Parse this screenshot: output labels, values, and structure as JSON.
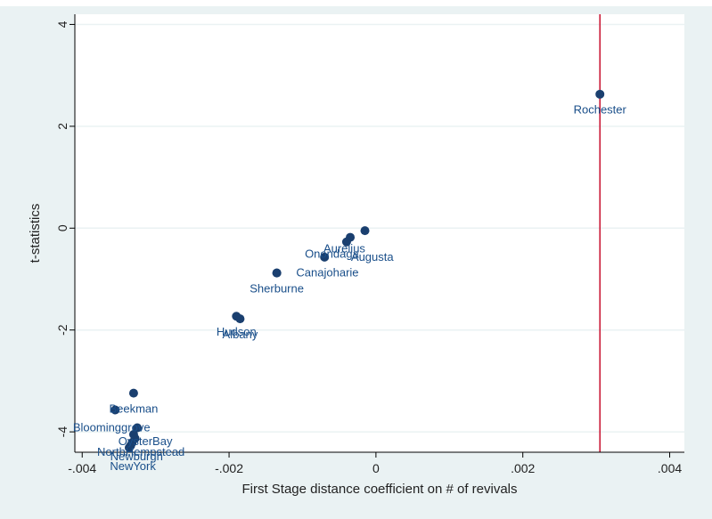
{
  "chart_data": {
    "type": "scatter",
    "title": "",
    "xlabel": "First Stage distance coefficient on # of revivals",
    "ylabel": "t-statistics",
    "xlim": [
      -0.0041,
      0.0042
    ],
    "ylim": [
      -4.4,
      4.2
    ],
    "x_ticks": [
      -0.004,
      -0.002,
      0,
      0.002,
      0.004
    ],
    "x_tick_labels": [
      "-.004",
      "-.002",
      "0",
      ".002",
      ".004"
    ],
    "y_ticks": [
      -4,
      -2,
      0,
      2,
      4
    ],
    "y_tick_labels": [
      "-4",
      "-2",
      "0",
      "2",
      "4"
    ],
    "grid": "horizontal",
    "reference_line": {
      "x": 0.00305,
      "color": "#c8102e"
    },
    "colors": {
      "marker": "#1a3f6f",
      "label": "#1a4f8a",
      "plot_bg": "#ffffff",
      "outer_bg": "#eaf2f3",
      "grid": "#eaf2f3",
      "axis": "#000000"
    },
    "points": [
      {
        "label": "Rochester",
        "x": 0.00305,
        "y": 2.63,
        "label_dx": 0.0,
        "label_dy": -0.3
      },
      {
        "label": "Aurelius",
        "x": -0.00015,
        "y": -0.05,
        "label_dx": -0.00028,
        "label_dy": -0.35
      },
      {
        "label": "",
        "x": -0.00035,
        "y": -0.18,
        "label_dx": 0,
        "label_dy": 0
      },
      {
        "label": "Onondaga",
        "x": -0.0004,
        "y": -0.27,
        "label_dx": -0.0002,
        "label_dy": -0.23
      },
      {
        "label": "Augusta",
        "x": -0.0007,
        "y": -0.57,
        "label_dx": 0.00065,
        "label_dy": 0.01
      },
      {
        "label": "Canajoharie",
        "x": -0.00135,
        "y": -0.88,
        "label_dx": 0.00069,
        "label_dy": 0.01
      },
      {
        "label": "Sherburne",
        "x": -0.00135,
        "y": -0.88,
        "label_dx": 0.0,
        "label_dy": -0.3
      },
      {
        "label": "Hudson",
        "x": -0.0019,
        "y": -1.73,
        "label_dx": 0.0,
        "label_dy": -0.3
      },
      {
        "label": "Albany",
        "x": -0.00185,
        "y": -1.78,
        "label_dx": 0.0,
        "label_dy": -0.3
      },
      {
        "label": "Beekman",
        "x": -0.0033,
        "y": -3.24,
        "label_dx": 0.0,
        "label_dy": -0.3
      },
      {
        "label": "",
        "x": -0.00355,
        "y": -3.57,
        "label_dx": 0,
        "label_dy": 0
      },
      {
        "label": "Bloominggrove",
        "x": -0.00325,
        "y": -3.92,
        "label_dx": -0.00035,
        "label_dy": 0.01
      },
      {
        "label": "",
        "x": -0.0033,
        "y": -4.05,
        "label_dx": 0,
        "label_dy": 0
      },
      {
        "label": "OysterBay",
        "x": -0.00328,
        "y": -4.13,
        "label_dx": 0.00014,
        "label_dy": -0.05
      },
      {
        "label": "NorthHempstead",
        "x": -0.00332,
        "y": -4.21,
        "label_dx": 0.00012,
        "label_dy": -0.18
      },
      {
        "label": "Newburgh",
        "x": -0.00334,
        "y": -4.27,
        "label_dx": 8e-05,
        "label_dy": -0.21
      },
      {
        "label": "NewYork",
        "x": -0.00336,
        "y": -4.31,
        "label_dx": 5e-05,
        "label_dy": -0.36
      }
    ]
  }
}
